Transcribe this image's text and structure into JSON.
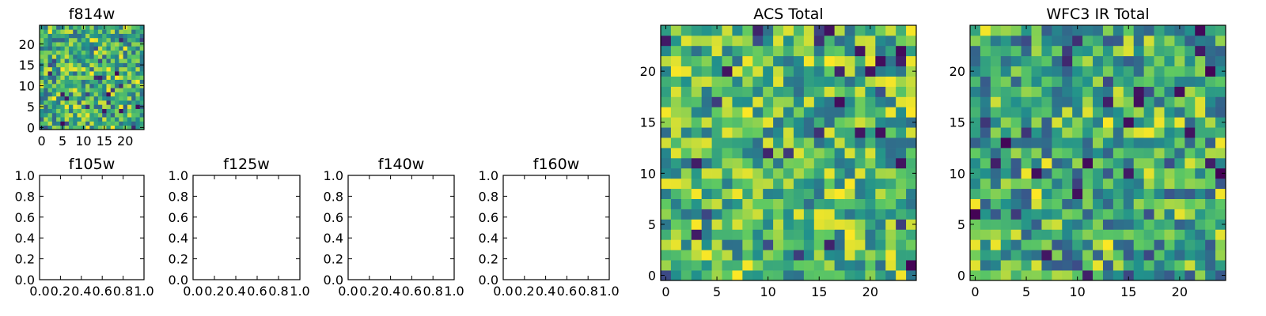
{
  "colormap": [
    "#440154",
    "#3b528b",
    "#21918c",
    "#5ec962",
    "#fde725"
  ],
  "chart_data": [
    {
      "id": "f814w",
      "type": "heatmap",
      "title": "f814w",
      "grid_size": 25,
      "seed": 814,
      "bias": 0.62,
      "xlim": [
        -0.5,
        24.5
      ],
      "ylim": [
        -0.5,
        24.5
      ],
      "xticks": [
        0,
        5,
        10,
        15,
        20
      ],
      "yticks": [
        0,
        5,
        10,
        15,
        20
      ]
    },
    {
      "id": "f105w",
      "type": "heatmap",
      "title": "f105w",
      "empty": true,
      "xlim": [
        0,
        1
      ],
      "ylim": [
        0,
        1
      ],
      "xticks": [
        "0.0",
        "0.2",
        "0.4",
        "0.6",
        "0.8",
        "1.0"
      ],
      "yticks": [
        "0.0",
        "0.2",
        "0.4",
        "0.6",
        "0.8",
        "1.0"
      ]
    },
    {
      "id": "f125w",
      "type": "heatmap",
      "title": "f125w",
      "empty": true,
      "xlim": [
        0,
        1
      ],
      "ylim": [
        0,
        1
      ],
      "xticks": [
        "0.0",
        "0.2",
        "0.4",
        "0.6",
        "0.8",
        "1.0"
      ],
      "yticks": [
        "0.0",
        "0.2",
        "0.4",
        "0.6",
        "0.8",
        "1.0"
      ]
    },
    {
      "id": "f140w",
      "type": "heatmap",
      "title": "f140w",
      "empty": true,
      "xlim": [
        0,
        1
      ],
      "ylim": [
        0,
        1
      ],
      "xticks": [
        "0.0",
        "0.2",
        "0.4",
        "0.6",
        "0.8",
        "1.0"
      ],
      "yticks": [
        "0.0",
        "0.2",
        "0.4",
        "0.6",
        "0.8",
        "1.0"
      ]
    },
    {
      "id": "f160w",
      "type": "heatmap",
      "title": "f160w",
      "empty": true,
      "xlim": [
        0,
        1
      ],
      "ylim": [
        0,
        1
      ],
      "xticks": [
        "0.0",
        "0.2",
        "0.4",
        "0.6",
        "0.8",
        "1.0"
      ],
      "yticks": [
        "0.0",
        "0.2",
        "0.4",
        "0.6",
        "0.8",
        "1.0"
      ]
    },
    {
      "id": "acs-total",
      "type": "heatmap",
      "title": "ACS Total",
      "grid_size": 25,
      "seed": 2017,
      "bias": 0.66,
      "xlim": [
        -0.5,
        24.5
      ],
      "ylim": [
        -0.5,
        24.5
      ],
      "xticks": [
        0,
        5,
        10,
        15,
        20
      ],
      "yticks": [
        0,
        5,
        10,
        15,
        20
      ]
    },
    {
      "id": "wfc3-ir-total",
      "type": "heatmap",
      "title": "WFC3 IR Total",
      "grid_size": 25,
      "seed": 3311,
      "bias": 0.58,
      "xlim": [
        -0.5,
        24.5
      ],
      "ylim": [
        -0.5,
        24.5
      ],
      "xticks": [
        0,
        5,
        10,
        15,
        20
      ],
      "yticks": [
        0,
        5,
        10,
        15,
        20
      ]
    }
  ]
}
